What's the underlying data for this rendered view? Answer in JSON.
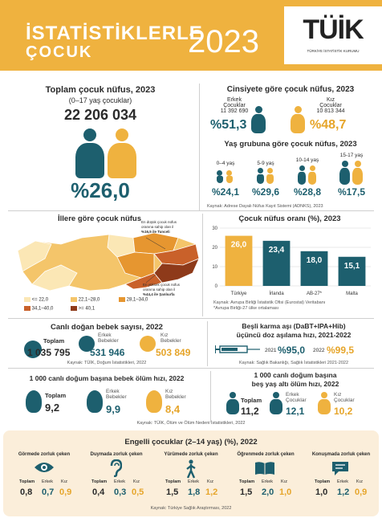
{
  "header": {
    "title_line1": "İSTATİSTİKLERLE",
    "title_line2": "ÇOCUK",
    "year": "2023",
    "logo_text": "TÜİK",
    "logo_subtitle": "TÜRKİYE İSTATİSTİK KURUMU"
  },
  "total": {
    "title": "Toplam çocuk nüfus, 2023",
    "subtitle": "(0–17 yaş çocuklar)",
    "value": "22 206 034",
    "percent": "%26,0"
  },
  "gender": {
    "title": "Cinsiyete göre çocuk nüfus, 2023",
    "male_label_1": "Erkek",
    "male_label_2": "Çocuklar",
    "male_value": "11 392 690",
    "male_percent": "%51,3",
    "female_label_1": "Kız",
    "female_label_2": "Çocuklar",
    "female_value": "10 813 344",
    "female_percent": "%48,7"
  },
  "age": {
    "title": "Yaş grubuna göre çocuk nüfus, 2023",
    "groups": [
      {
        "label": "0–4 yaş",
        "value": "%24,1"
      },
      {
        "label": "5-9 yaş",
        "value": "%29,6"
      },
      {
        "label": "10-14 yaş",
        "value": "%28,8"
      },
      {
        "label": "15-17 yaş",
        "value": "%17,5"
      }
    ],
    "source": "Kaynak: Adrese Dayalı Nüfus Kayıt Sistemi (ADNKS), 2023"
  },
  "map": {
    "title": "İllere göre çocuk nüfus",
    "low_note_1": "En düşük çocuk nüfus",
    "low_note_2": "oranına sahip olan il",
    "low_note_3": "%16,5 ile Tunceli",
    "high_note_1": "En yüksek çocuk nüfus",
    "high_note_2": "oranına sahip olan il",
    "high_note_3": "%44,4 ile Şanlıurfa",
    "legend": [
      {
        "label": "<= 22,0",
        "color": "#fbe7b5"
      },
      {
        "label": "22,1–28,0",
        "color": "#f4c56a"
      },
      {
        "label": "28,1–34,0",
        "color": "#e69630"
      },
      {
        "label": "34,1–40,0",
        "color": "#c9612a"
      },
      {
        "label": ">= 40,1",
        "color": "#8e3a1a"
      }
    ]
  },
  "chart_data": {
    "type": "bar",
    "title": "Çocuk nüfus oranı (%), 2023",
    "categories": [
      "Türkiye",
      "İrlanda",
      "AB-27*",
      "Malta"
    ],
    "values": [
      26.0,
      23.4,
      18.0,
      15.1
    ],
    "value_labels": [
      "26,0",
      "23,4",
      "18,0",
      "15,1"
    ],
    "ylim": [
      0,
      30
    ],
    "yticks": [
      "0",
      "10",
      "20",
      "30"
    ],
    "colors": [
      "#efb23f",
      "#1d5f6e",
      "#1d5f6e",
      "#1d5f6e"
    ],
    "grid": true
  },
  "chart_source_1": "Kaynak: Avrupa Birliği İstatistik Ofisi (Eurostat) Veritabanı",
  "chart_source_2": "*Avrupa Birliği-27 ülke ortalaması",
  "births": {
    "title": "Canlı doğan bebek sayısı, 2022",
    "total_label": "Toplam",
    "total_value": "1 035 795",
    "male_label_1": "Erkek",
    "male_label_2": "Bebekler",
    "male_value": "531 946",
    "female_label_1": "Kız",
    "female_label_2": "Bebekler",
    "female_value": "503 849",
    "source": "Kaynak: TÜİK, Doğum İstatistikleri, 2022"
  },
  "vaccine": {
    "title_1": "Beşli karma aşı (DaBT+IPA+Hib)",
    "title_2": "üçüncü doz aşılama hızı, 2021-2022",
    "year_2021": "2021",
    "value_2021": "%95,0",
    "year_2022": "2022",
    "value_2022": "%99,5",
    "source": "Kaynak: Sağlık Bakanlığı, Sağlık İstatistikleri 2021-2022"
  },
  "infant": {
    "title": "1 000 canlı doğum başına bebek ölüm hızı, 2022",
    "total_label": "Toplam",
    "total_value": "9,2",
    "male_label_1": "Erkek",
    "male_label_2": "Bebekler",
    "male_value": "9,9",
    "female_label_1": "Kız",
    "female_label_2": "Bebekler",
    "female_value": "8,4"
  },
  "under5": {
    "title_1": "1 000 canlı doğum başına",
    "title_2": "beş yaş altı ölüm hızı, 2022",
    "total_label": "Toplam",
    "total_value": "11,2",
    "male_label_1": "Erkek",
    "male_label_2": "Çocuklar",
    "male_value": "12,1",
    "female_label_1": "Kız",
    "female_label_2": "Çocuklar",
    "female_value": "10,2"
  },
  "mortality_source": "Kaynak: TÜİK, Ölüm ve Ölüm Nedeni İstatistikleri, 2022",
  "disability": {
    "title": "Engelli çocuklar (2–14 yaş) (%), 2022",
    "col_total": "Toplam",
    "col_male": "Erkek",
    "col_female": "Kız",
    "items": [
      {
        "label": "Görmede zorluk çeken",
        "total": "0,8",
        "male": "0,7",
        "female": "0,9"
      },
      {
        "label": "Duymada zorluk çeken",
        "total": "0,4",
        "male": "0,3",
        "female": "0,5"
      },
      {
        "label": "Yürümede zorluk çeken",
        "total": "1,5",
        "male": "1,8",
        "female": "1,2"
      },
      {
        "label": "Öğrenmede zorluk çeken",
        "total": "1,5",
        "male": "2,0",
        "female": "1,0"
      },
      {
        "label": "Konuşmada zorluk çeken",
        "total": "1,0",
        "male": "1,2",
        "female": "0,9"
      }
    ],
    "source": "Kaynak: Türkiye Sağlık Araştırması, 2022"
  }
}
